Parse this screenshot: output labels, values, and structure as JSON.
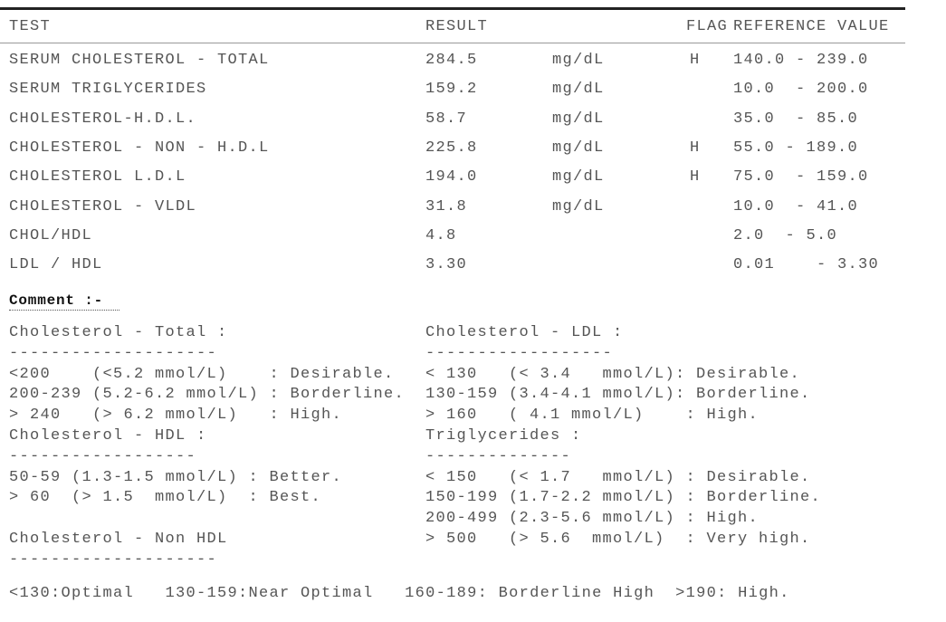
{
  "table": {
    "header": [
      "TEST",
      "RESULT",
      "FLAG",
      "REFERENCE VALUE"
    ],
    "rows": [
      [
        "SERUM CHOLESTEROL - TOTAL",
        "284.5",
        "mg/dL",
        "H",
        "140.0 - 239.0"
      ],
      [
        "SERUM TRIGLYCERIDES",
        "159.2",
        "mg/dL",
        null,
        "10.0  - 200.0"
      ],
      [
        "CHOLESTEROL-H.D.L.",
        "58.7",
        "mg/dL",
        null,
        "35.0  - 85.0"
      ],
      [
        "CHOLESTEROL - NON - H.D.L",
        "225.8",
        "mg/dL",
        "H",
        "55.0 - 189.0"
      ],
      [
        "CHOLESTEROL L.D.L",
        "194.0",
        "mg/dL",
        "H",
        "75.0  - 159.0"
      ],
      [
        "CHOLESTEROL - VLDL",
        "31.8",
        "mg/dL",
        null,
        "10.0  - 41.0"
      ],
      [
        "CHOL/HDL",
        "4.8",
        null,
        null,
        "2.0  - 5.0"
      ],
      [
        "LDL / HDL",
        "3.30",
        null,
        null,
        "0.01    - 3.30"
      ]
    ]
  },
  "comment": {
    "title": "Comment :-",
    "left": [
      "Cholesterol - Total :",
      "--------------------",
      "<200    (<5.2 mmol/L)    : Desirable.",
      "200-239 (5.2-6.2 mmol/L) : Borderline.",
      "> 240   (> 6.2 mmol/L)   : High.",
      "Cholesterol - HDL :",
      "------------------",
      "50-59 (1.3-1.5 mmol/L) : Better.",
      "> 60  (> 1.5  mmol/L)  : Best."
    ],
    "left_bottom": [
      "Cholesterol - Non HDL",
      "--------------------"
    ],
    "right": [
      "Cholesterol - LDL :",
      "------------------",
      "< 130   (< 3.4   mmol/L): Desirable.",
      "130-159 (3.4-4.1 mmol/L): Borderline.",
      "> 160   ( 4.1 mmol/L)    : High.",
      "Triglycerides :",
      "--------------",
      "< 150   (< 1.7   mmol/L) : Desirable.",
      "150-199 (1.7-2.2 mmol/L) : Borderline.",
      "200-499 (2.3-5.6 mmol/L) : High.",
      "> 500   (> 5.6  mmol/L)  : Very high."
    ],
    "footer": "<130:Optimal   130-159:Near Optimal   160-189: Borderline High  >190: High."
  }
}
